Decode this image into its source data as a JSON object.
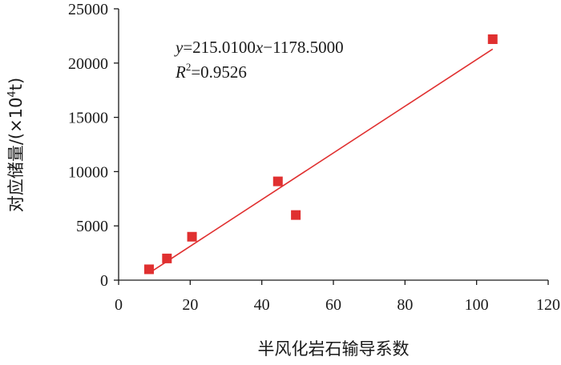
{
  "chart_data": {
    "type": "scatter",
    "title": "",
    "xlabel": "半风化岩石输导系数",
    "ylabel_main": "对应储量/",
    "ylabel_unit_open": "(×10",
    "ylabel_unit_sup": "4",
    "ylabel_unit_close": "t)",
    "xlim": [
      0,
      120
    ],
    "ylim": [
      0,
      25000
    ],
    "x_ticks": [
      "0",
      "20",
      "40",
      "60",
      "80",
      "100",
      "120"
    ],
    "y_ticks": [
      "0",
      "5000",
      "10000",
      "15000",
      "20000",
      "25000"
    ],
    "grid": false,
    "legend": "none",
    "series": [
      {
        "points": [
          {
            "x": 8.5,
            "y": 1000
          },
          {
            "x": 13.5,
            "y": 2000
          },
          {
            "x": 20.5,
            "y": 4000
          },
          {
            "x": 44.5,
            "y": 9100
          },
          {
            "x": 49.5,
            "y": 6000
          },
          {
            "x": 104.5,
            "y": 22200
          }
        ],
        "marker": "square",
        "color": "#e03030"
      }
    ],
    "trendline": {
      "slope": 215.01,
      "intercept": -1178.5,
      "x_range": [
        8.5,
        104.5
      ],
      "color": "#e03030"
    },
    "annotation": {
      "eq_y": "y",
      "eq_rest": "=215.0100",
      "eq_x": "x",
      "eq_tail": "−1178.5000",
      "r2_r": "R",
      "r2_sup": "2",
      "r2_val": "=0.9526"
    },
    "axis_color": "#1a1a1a"
  }
}
